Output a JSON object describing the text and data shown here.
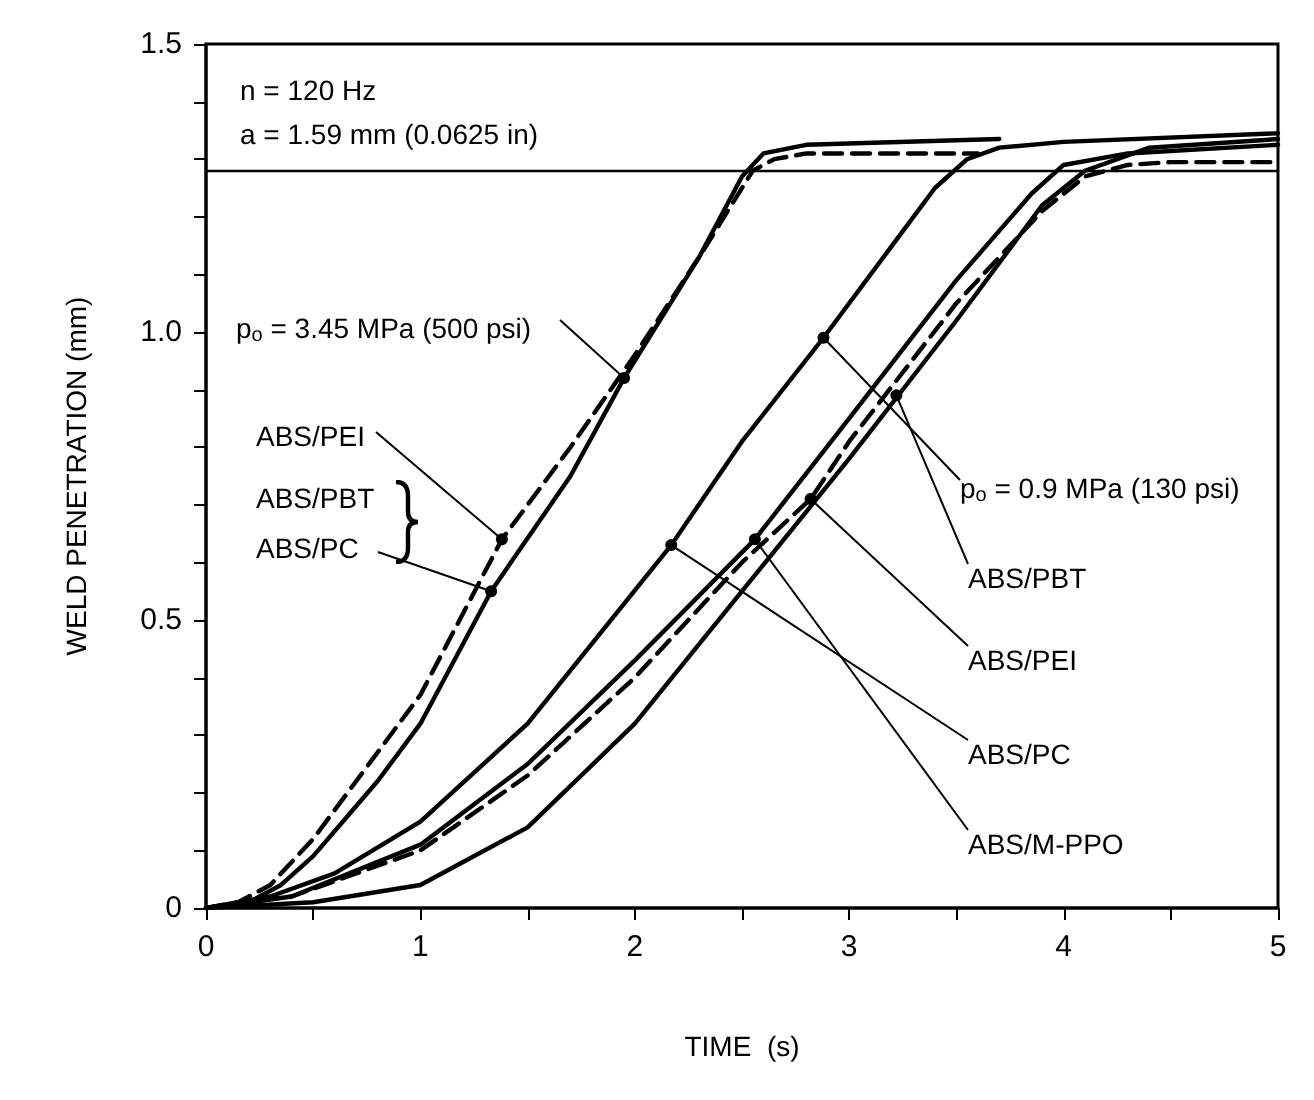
{
  "chart_data": {
    "type": "line",
    "xlabel": "TIME  (s)",
    "ylabel": "WELD PENETRATION (mm)",
    "xlim": [
      0,
      5
    ],
    "ylim": [
      0,
      1.5
    ],
    "xticks": [
      0,
      {
        "value": 0.5,
        "label": null
      },
      1,
      {
        "value": 1.5,
        "label": null
      },
      2,
      {
        "value": 2.5,
        "label": null
      },
      3,
      {
        "value": 3.5,
        "label": null
      },
      4,
      {
        "value": 4.5,
        "label": null
      },
      5
    ],
    "yticks": [
      0,
      {
        "value": 0.1,
        "label": null
      },
      {
        "value": 0.2,
        "label": null
      },
      {
        "value": 0.3,
        "label": null
      },
      {
        "value": 0.4,
        "label": null
      },
      0.5,
      {
        "value": 0.6,
        "label": null
      },
      {
        "value": 0.7,
        "label": null
      },
      {
        "value": 0.8,
        "label": null
      },
      {
        "value": 0.9,
        "label": null
      },
      {
        "value": 1,
        "label": "1.0"
      },
      {
        "value": 1.1,
        "label": null
      },
      {
        "value": 1.2,
        "label": null
      },
      {
        "value": 1.3,
        "label": null
      },
      {
        "value": 1.4,
        "label": null
      },
      {
        "value": 1.5,
        "label": "1.5"
      }
    ],
    "grid": false,
    "marker": "none",
    "ref_lines": [
      {
        "axis": "y",
        "value": 1.28,
        "color": "#000000",
        "line_style": "solid"
      }
    ],
    "series": [
      {
        "color": "#000000",
        "line_style": "dashed",
        "x": [
          0,
          0.15,
          0.3,
          0.5,
          0.8,
          1.0,
          1.38,
          1.7,
          2.0,
          2.3,
          2.45,
          2.55,
          2.65,
          2.8,
          3.6
        ],
        "values": [
          0,
          0.01,
          0.04,
          0.12,
          0.27,
          0.37,
          0.64,
          0.8,
          0.96,
          1.13,
          1.22,
          1.28,
          1.3,
          1.31,
          1.31
        ]
      },
      {
        "color": "#000000",
        "line_style": "solid",
        "x": [
          0,
          0.2,
          0.35,
          0.5,
          0.8,
          1.0,
          1.33,
          1.7,
          1.95,
          2.3,
          2.5,
          2.6,
          2.8,
          3.7
        ],
        "values": [
          0,
          0.01,
          0.04,
          0.09,
          0.22,
          0.32,
          0.55,
          0.75,
          0.92,
          1.13,
          1.27,
          1.31,
          1.325,
          1.335
        ]
      },
      {
        "color": "#000000",
        "line_style": "solid",
        "x": [
          0,
          0.3,
          0.6,
          1.0,
          1.5,
          2.17,
          2.5,
          2.88,
          3.2,
          3.4,
          3.55,
          3.7,
          4.0,
          5.0
        ],
        "values": [
          0,
          0.02,
          0.06,
          0.15,
          0.32,
          0.63,
          0.81,
          0.99,
          1.15,
          1.25,
          1.3,
          1.32,
          1.33,
          1.345
        ]
      },
      {
        "color": "#000000",
        "line_style": "dashed",
        "x": [
          0,
          0.4,
          1.0,
          1.5,
          2.0,
          2.5,
          2.82,
          3.0,
          3.5,
          3.9,
          4.1,
          4.3,
          4.5,
          5.0
        ],
        "values": [
          0,
          0.02,
          0.1,
          0.23,
          0.4,
          0.6,
          0.71,
          0.81,
          1.05,
          1.21,
          1.27,
          1.29,
          1.295,
          1.295
        ]
      },
      {
        "color": "#000000",
        "line_style": "solid",
        "x": [
          0,
          0.4,
          1.0,
          1.5,
          2.0,
          2.56,
          3.0,
          3.5,
          3.85,
          4.0,
          4.3,
          5.0
        ],
        "values": [
          0,
          0.02,
          0.11,
          0.25,
          0.43,
          0.64,
          0.85,
          1.09,
          1.24,
          1.29,
          1.31,
          1.325
        ]
      },
      {
        "color": "#000000",
        "line_style": "solid",
        "x": [
          0,
          0.5,
          1.0,
          1.5,
          2.0,
          2.5,
          3.0,
          3.5,
          3.9,
          4.1,
          4.4,
          5.0
        ],
        "values": [
          0,
          0.01,
          0.04,
          0.14,
          0.32,
          0.55,
          0.78,
          1.02,
          1.22,
          1.28,
          1.32,
          1.335
        ]
      }
    ],
    "annotations": [
      "n = 120 Hz",
      "a = 1.59 mm (0.0625 in)",
      {
        "text": "p$_{o}$ = 3.45 MPa (500 psi)",
        "x": 1.95,
        "y": 0.92
      },
      {
        "text": "ABS/PEI",
        "x": 1.38,
        "y": 0.64
      },
      "ABS/PBT",
      {
        "text": "ABS/PC",
        "x": 1.33,
        "y": 0.55
      },
      {
        "text": "p$_{o}$ = 0.9 MPa (130 psi)",
        "x": 2.88,
        "y": 0.99
      },
      {
        "text": "ABS/PBT",
        "x": 3.22,
        "y": 0.89
      },
      {
        "text": "ABS/PEI",
        "x": 2.82,
        "y": 0.71
      },
      {
        "text": "ABS/PC",
        "x": 2.17,
        "y": 0.63
      },
      {
        "text": "ABS/M-PPO",
        "x": 2.56,
        "y": 0.64
      }
    ]
  }
}
